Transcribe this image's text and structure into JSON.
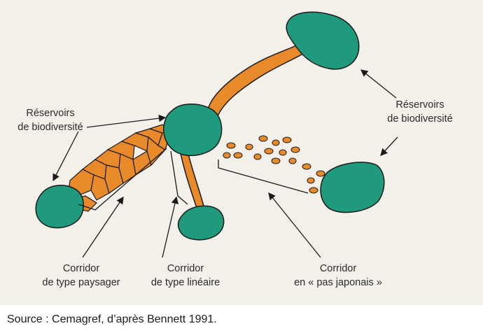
{
  "labels": {
    "reservoirs_left": {
      "line1": "Réservoirs",
      "line2": "de biodiversité"
    },
    "reservoirs_right": {
      "line1": "Réservoirs",
      "line2": "de biodiversité"
    },
    "corridor_paysager": {
      "line1": "Corridor",
      "line2": "de type paysager"
    },
    "corridor_lineaire": {
      "line1": "Corridor",
      "line2": "de type linéaire"
    },
    "corridor_pas_japonais": {
      "line1": "Corridor",
      "line2": "en « pas japonais »"
    }
  },
  "source": "Source : Cemagref, d’après Bennett 1991.",
  "colors": {
    "background": "#f3f0ea",
    "reservoir": "#1f9a7c",
    "corridor": "#e8892a",
    "outline": "#1a1a1a"
  }
}
